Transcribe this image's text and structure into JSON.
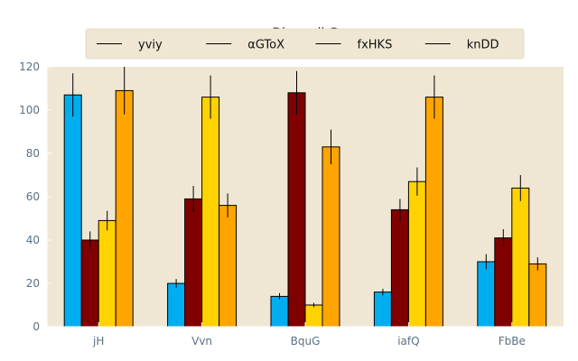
{
  "chart_data": {
    "type": "bar",
    "title": "Dimmyll G",
    "xlabel": "",
    "ylabel": "",
    "categories": [
      "jH",
      "Vvn",
      "BquG",
      "iafQ",
      "FbBe"
    ],
    "ylim": [
      0,
      120
    ],
    "yticks": [
      0,
      20,
      40,
      60,
      80,
      100,
      120
    ],
    "grid": false,
    "legend_position": "top-center",
    "background": "#efe7d3",
    "series": [
      {
        "name": "yviy",
        "color": "#00aeef",
        "values": [
          107,
          20,
          14,
          16,
          30
        ],
        "errors": [
          10,
          2,
          1.5,
          1.5,
          3.5
        ]
      },
      {
        "name": "αGToX",
        "color": "#800000",
        "values": [
          40,
          59,
          108,
          54,
          41
        ],
        "errors": [
          4,
          6,
          10,
          5,
          4
        ]
      },
      {
        "name": "fxHKS",
        "color": "#ffd200",
        "values": [
          49,
          106,
          10,
          67,
          64
        ],
        "errors": [
          4.5,
          10,
          1,
          6.5,
          6
        ]
      },
      {
        "name": "knDD",
        "color": "#ffa500",
        "values": [
          109,
          56,
          83,
          106,
          29
        ],
        "errors": [
          11,
          5.5,
          8,
          10,
          3
        ]
      }
    ]
  }
}
